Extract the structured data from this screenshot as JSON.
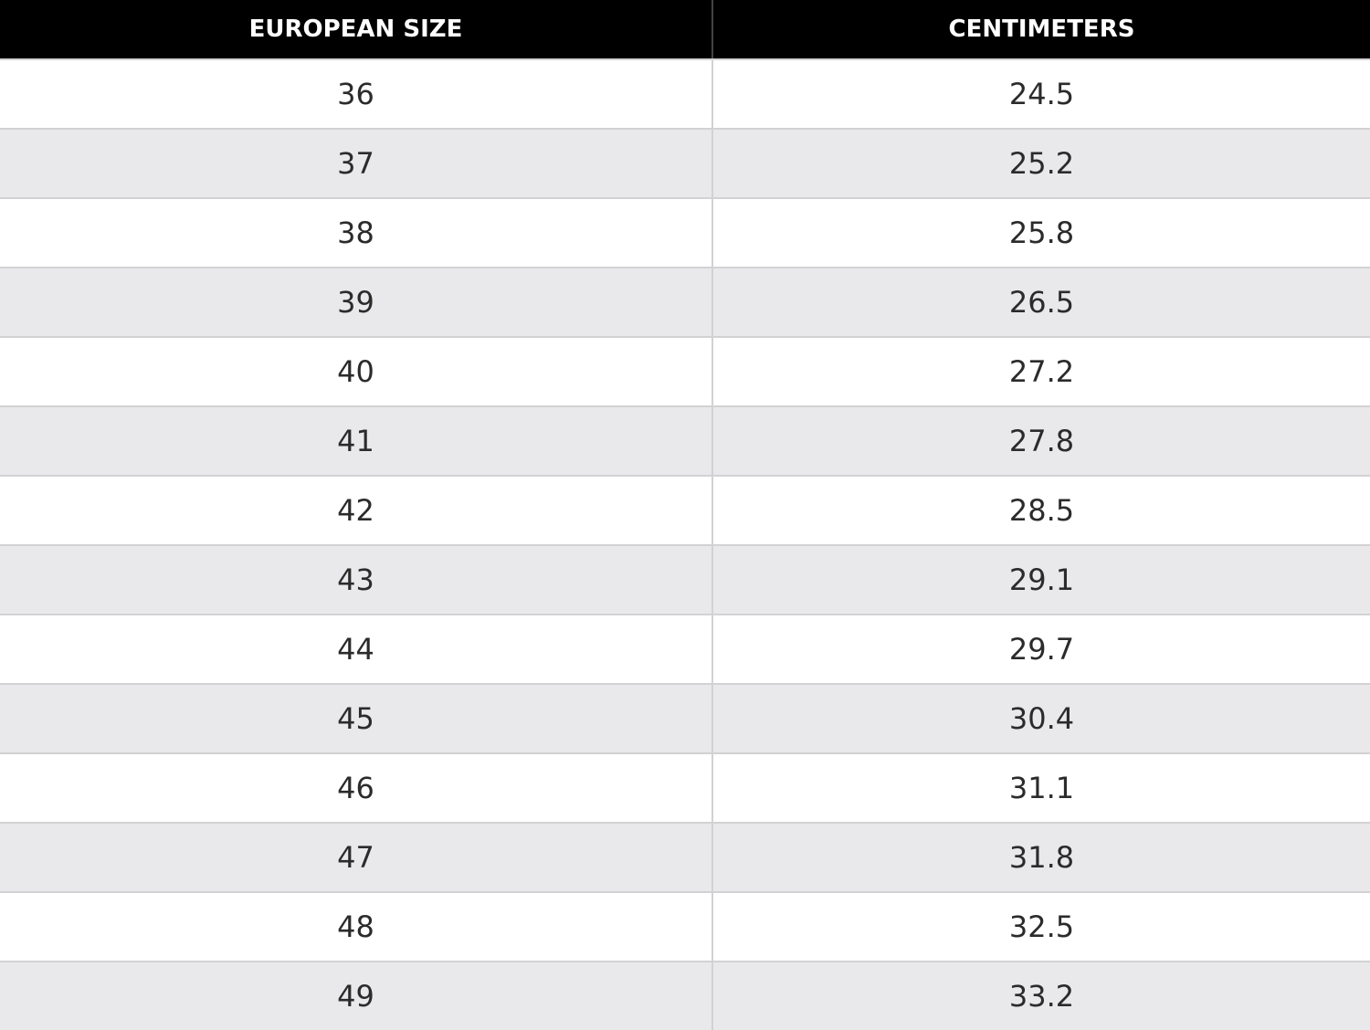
{
  "table": {
    "headers": [
      "EUROPEAN SIZE",
      "CENTIMETERS"
    ],
    "rows": [
      [
        "36",
        "24.5"
      ],
      [
        "37",
        "25.2"
      ],
      [
        "38",
        "25.8"
      ],
      [
        "39",
        "26.5"
      ],
      [
        "40",
        "27.2"
      ],
      [
        "41",
        "27.8"
      ],
      [
        "42",
        "28.5"
      ],
      [
        "43",
        "29.1"
      ],
      [
        "44",
        "29.7"
      ],
      [
        "45",
        "30.4"
      ],
      [
        "46",
        "31.1"
      ],
      [
        "47",
        "31.8"
      ],
      [
        "48",
        "32.5"
      ],
      [
        "49",
        "33.2"
      ]
    ]
  }
}
